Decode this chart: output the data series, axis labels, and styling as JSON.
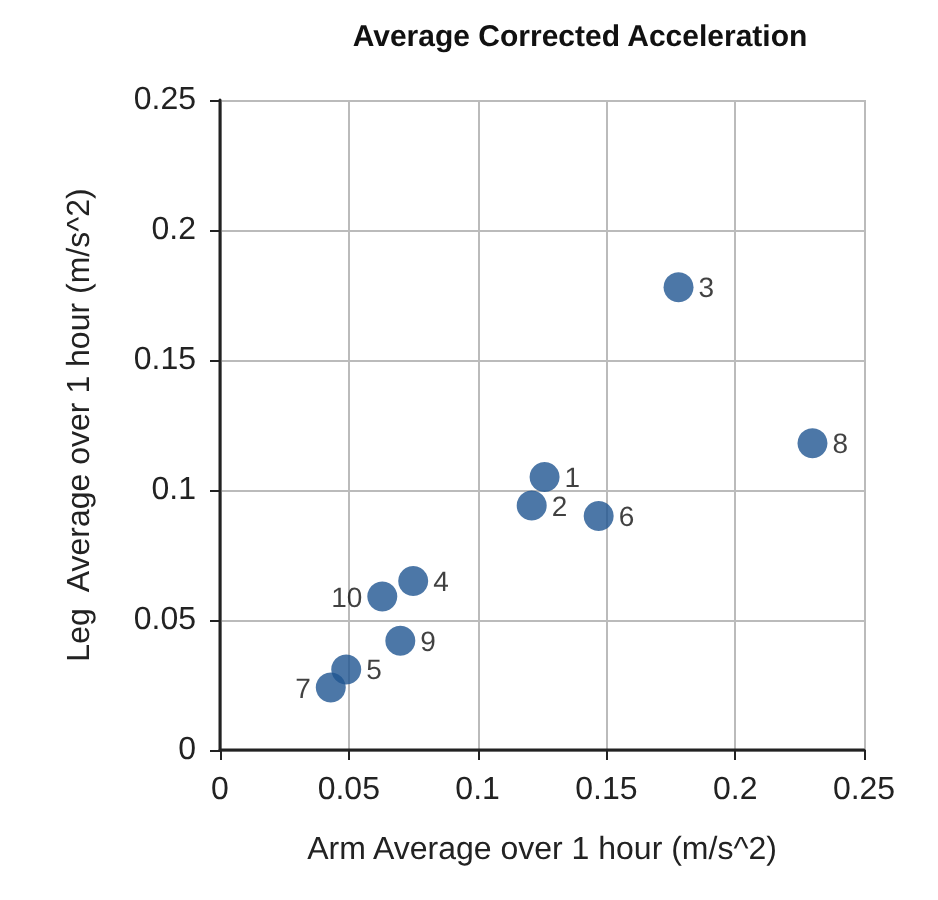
{
  "chart_data": {
    "type": "scatter",
    "title": "Average Corrected Acceleration",
    "xlabel": "Arm Average over 1 hour (m/s^2)",
    "ylabel": "Leg  Average over 1 hour (m/s^2)",
    "x": [
      0.126,
      0.121,
      0.178,
      0.075,
      0.049,
      0.147,
      0.043,
      0.23,
      0.07,
      0.063
    ],
    "values": [
      0.105,
      0.094,
      0.178,
      0.065,
      0.031,
      0.09,
      0.024,
      0.118,
      0.042,
      0.059
    ],
    "color": "#1f5591",
    "annotations": [
      {
        "text": "1",
        "x": 0.126,
        "y": 0.105
      },
      {
        "text": "2",
        "x": 0.121,
        "y": 0.094
      },
      {
        "text": "3",
        "x": 0.178,
        "y": 0.178
      },
      {
        "text": "4",
        "x": 0.075,
        "y": 0.065
      },
      {
        "text": "5",
        "x": 0.049,
        "y": 0.031
      },
      {
        "text": "6",
        "x": 0.147,
        "y": 0.09
      },
      {
        "text": "7",
        "x": 0.043,
        "y": 0.024
      },
      {
        "text": "8",
        "x": 0.23,
        "y": 0.118
      },
      {
        "text": "9",
        "x": 0.07,
        "y": 0.042
      },
      {
        "text": "10",
        "x": 0.063,
        "y": 0.059
      }
    ],
    "xlim": [
      0,
      0.25
    ],
    "xticks": [
      0,
      0.05,
      0.1,
      0.15,
      0.2,
      0.25
    ],
    "ylim": [
      0,
      0.25
    ],
    "yticks": [
      0,
      0.05,
      0.1,
      0.15,
      0.2,
      0.25
    ],
    "grid": true,
    "marker": "circle"
  }
}
